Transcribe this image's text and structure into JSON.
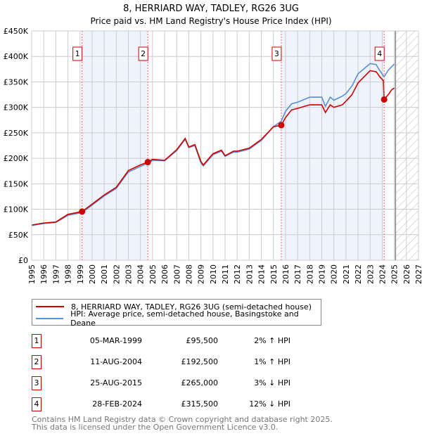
{
  "chart_data": {
    "type": "line",
    "title": "8, HERRIARD WAY, TADLEY, RG26 3UG",
    "subtitle": "Price paid vs. HM Land Registry's House Price Index (HPI)",
    "xlim": [
      1995,
      2027
    ],
    "ylim": [
      0,
      450000
    ],
    "x_ticks": [
      "1995",
      "1996",
      "1997",
      "1998",
      "1999",
      "2000",
      "2001",
      "2002",
      "2003",
      "2004",
      "2005",
      "2006",
      "2007",
      "2008",
      "2009",
      "2010",
      "2011",
      "2012",
      "2013",
      "2014",
      "2015",
      "2016",
      "2017",
      "2018",
      "2019",
      "2020",
      "2021",
      "2022",
      "2023",
      "2024",
      "2025",
      "2026",
      "2027"
    ],
    "y_ticks": [
      {
        "v": 0,
        "label": "£0"
      },
      {
        "v": 50000,
        "label": "£50K"
      },
      {
        "v": 100000,
        "label": "£100K"
      },
      {
        "v": 150000,
        "label": "£150K"
      },
      {
        "v": 200000,
        "label": "£200K"
      },
      {
        "v": 250000,
        "label": "£250K"
      },
      {
        "v": 300000,
        "label": "£300K"
      },
      {
        "v": 350000,
        "label": "£350K"
      },
      {
        "v": 400000,
        "label": "£400K"
      },
      {
        "v": 450000,
        "label": "£450K"
      }
    ],
    "grid": true,
    "forecast_start": 2025.1,
    "series": [
      {
        "name": "8, HERRIARD WAY, TADLEY, RG26 3UG (semi-detached house)",
        "color": "#cc0000",
        "x": [
          1995,
          1996,
          1997,
          1998,
          1999.17,
          2000,
          2001,
          2002,
          2003,
          2004,
          2004.61,
          2005,
          2006,
          2007,
          2007.7,
          2008,
          2008.5,
          2009,
          2009.2,
          2010,
          2010.7,
          2011,
          2011.7,
          2012,
          2013,
          2014,
          2015,
          2015.65,
          2016,
          2016.5,
          2017,
          2018,
          2019,
          2019.3,
          2019.7,
          2020,
          2020.7,
          2021,
          2021.5,
          2022,
          2022.5,
          2023,
          2023.5,
          2023.8,
          2024.1,
          2024.16,
          2024.5,
          2024.8,
          2025
        ],
        "y": [
          69000,
          73000,
          75000,
          90000,
          95500,
          110000,
          128000,
          143000,
          176000,
          187000,
          192500,
          198000,
          196000,
          217000,
          239000,
          222000,
          227000,
          194000,
          187000,
          209000,
          216000,
          205000,
          214000,
          214000,
          220000,
          237000,
          262000,
          265000,
          280000,
          295000,
          298000,
          305000,
          305000,
          290000,
          305000,
          300000,
          305000,
          312000,
          325000,
          348000,
          360000,
          372000,
          370000,
          360000,
          352000,
          315500,
          325000,
          335000,
          338000
        ]
      },
      {
        "name": "HPI: Average price, semi-detached house, Basingstoke and Deane",
        "color": "#5b8fd4",
        "x": [
          1995,
          1996,
          1997,
          1998,
          1999.17,
          2000,
          2001,
          2002,
          2003,
          2004,
          2004.61,
          2005,
          2006,
          2007,
          2007.7,
          2008,
          2008.5,
          2009,
          2009.2,
          2010,
          2010.7,
          2011,
          2011.7,
          2012,
          2013,
          2014,
          2015,
          2015.65,
          2016,
          2016.5,
          2017,
          2018,
          2019,
          2019.3,
          2019.7,
          2020,
          2020.7,
          2021,
          2021.5,
          2022,
          2022.5,
          2023,
          2023.5,
          2023.8,
          2024.16,
          2024.5,
          2025
        ],
        "y": [
          68000,
          72000,
          74000,
          88000,
          93500,
          108000,
          126000,
          141000,
          173000,
          184000,
          190500,
          196000,
          195000,
          215000,
          237000,
          221000,
          225000,
          191000,
          185000,
          207000,
          214000,
          204000,
          212000,
          212000,
          218000,
          235000,
          262000,
          273000,
          292000,
          307000,
          310000,
          320000,
          320000,
          302000,
          320000,
          314000,
          322000,
          327000,
          342000,
          366000,
          376000,
          386000,
          384000,
          372000,
          360000,
          373000,
          385000
        ]
      }
    ],
    "sales": [
      {
        "n": "1",
        "x": 1999.17,
        "y": 95500,
        "date": "05-MAR-1999",
        "price": "£95,500",
        "hpi": "2% ↑ HPI"
      },
      {
        "n": "2",
        "x": 2004.61,
        "y": 192500,
        "date": "11-AUG-2004",
        "price": "£192,500",
        "hpi": "1% ↑ HPI"
      },
      {
        "n": "3",
        "x": 2015.65,
        "y": 265000,
        "date": "25-AUG-2015",
        "price": "£265,000",
        "hpi": "3% ↓ HPI"
      },
      {
        "n": "4",
        "x": 2024.16,
        "y": 315500,
        "date": "28-FEB-2024",
        "price": "£315,500",
        "hpi": "12% ↓ HPI"
      }
    ],
    "shaded_ranges": [
      [
        1999.17,
        2004.61
      ],
      [
        2015.65,
        2024.16
      ]
    ]
  },
  "legend": {
    "property": "8, HERRIARD WAY, TADLEY, RG26 3UG (semi-detached house)",
    "hpi": "HPI: Average price, semi-detached house, Basingstoke and Deane"
  },
  "footer": {
    "line1": "Contains HM Land Registry data © Crown copyright and database right 2025.",
    "line2": "This data is licensed under the Open Government Licence v3.0."
  }
}
